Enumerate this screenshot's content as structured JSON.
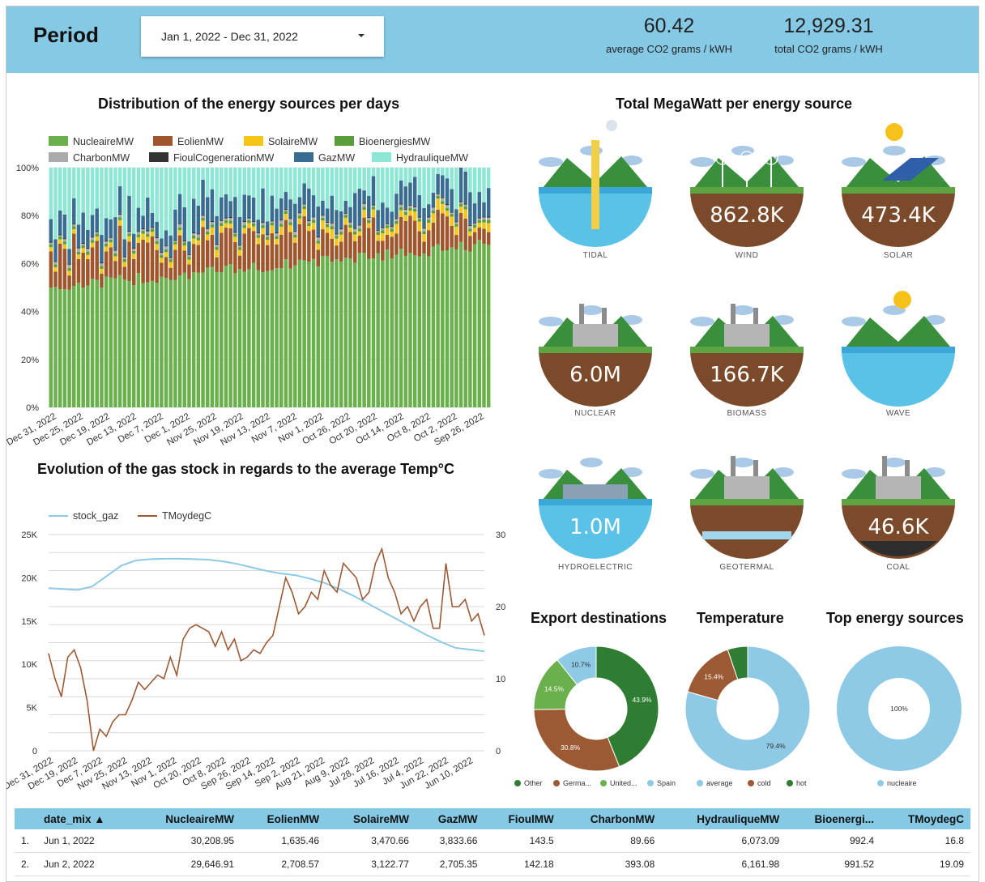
{
  "header": {
    "period_label": "Period",
    "date_range": "Jan 1, 2022 - Dec 31, 2022",
    "kpis": [
      {
        "value": "60.42",
        "label": "average CO2 grams / kWH"
      },
      {
        "value": "12,929.31",
        "label": "total CO2 grams / kWH"
      }
    ]
  },
  "colors": {
    "header_bg": "#85c9e5",
    "nucleaire": "#6ab04c",
    "eolien": "#a0562c",
    "solaire": "#f5c518",
    "bioenergies": "#5a9e3c",
    "charbon": "#aaaaaa",
    "fioul": "#333333",
    "gaz": "#386c90",
    "hydraulique": "#8ee6d4",
    "stock_gaz": "#8ecae6",
    "temp": "#9c5a34"
  },
  "titles": {
    "distribution": "Distribution of the energy sources per days",
    "total_mw": "Total MegaWatt per energy source",
    "gas": "Evolution of the gas stock in regards to the average Temp°C",
    "export": "Export destinations",
    "temperature": "Temperature",
    "top": "Top energy sources"
  },
  "chart_data": [
    {
      "type": "bar",
      "stacked": true,
      "normalized": true,
      "legend": [
        "NucleaireMW",
        "EolienMW",
        "SolaireMW",
        "BioenergiesMW",
        "CharbonMW",
        "FioulCogenerationMW",
        "GazMW",
        "HydrauliqueMW"
      ],
      "y_ticks": [
        "0%",
        "20%",
        "40%",
        "60%",
        "80%",
        "100%"
      ],
      "x_ticks": [
        "Dec 31, 2022",
        "Dec 25, 2022",
        "Dec 19, 2022",
        "Dec 13, 2022",
        "Dec 7, 2022",
        "Dec 1, 2022",
        "Nov 25, 2022",
        "Nov 19, 2022",
        "Nov 13, 2022",
        "Nov 7, 2022",
        "Nov 1, 2022",
        "Oct 26, 2022",
        "Oct 20, 2022",
        "Oct 14, 2022",
        "Oct 8, 2022",
        "Oct 2, 2022",
        "Sep 26, 2022"
      ],
      "series_approx_share": {
        "NucleaireMW": [
          0.52,
          0.68
        ],
        "EolienMW": [
          0.02,
          0.22
        ],
        "SolaireMW": [
          0.01,
          0.05
        ],
        "BioenergiesMW": [
          0.01,
          0.02
        ],
        "CharbonMW": [
          0.0,
          0.01
        ],
        "FioulCogenerationMW": [
          0.0,
          0.01
        ],
        "GazMW": [
          0.04,
          0.15
        ],
        "HydrauliqueMW": [
          0.06,
          0.12
        ]
      }
    },
    {
      "type": "line",
      "legend": [
        "stock_gaz",
        "TMoydegC"
      ],
      "y_left_ticks": [
        "0",
        "5K",
        "10K",
        "15K",
        "20K",
        "25K"
      ],
      "y_left_range": [
        0,
        25000
      ],
      "y_right_ticks": [
        "0",
        "10",
        "20",
        "30"
      ],
      "y_right_range": [
        0,
        30
      ],
      "x_ticks": [
        "Dec 31, 2022",
        "Dec 19, 2022",
        "Dec 7, 2022",
        "Nov 25, 2022",
        "Nov 13, 2022",
        "Nov 1, 2022",
        "Oct 20, 2022",
        "Oct 8, 2022",
        "Sep 26, 2022",
        "Sep 14, 2022",
        "Sep 2, 2022",
        "Aug 21, 2022",
        "Aug 9, 2022",
        "Jul 28, 2022",
        "Jul 16, 2022",
        "Jul 4, 2022",
        "Jun 22, 2022",
        "Jun 10, 2022"
      ],
      "stock_gaz": [
        18800,
        18700,
        18600,
        19000,
        20200,
        21400,
        22000,
        22150,
        22200,
        22200,
        22150,
        22100,
        21900,
        21600,
        21200,
        20800,
        20500,
        20300,
        19900,
        19400,
        18700,
        17900,
        17000,
        16100,
        15200,
        14300,
        13400,
        12600,
        11900,
        11700,
        11500
      ],
      "TMoydegC": [
        13.5,
        10,
        7.5,
        13,
        14,
        11.5,
        7,
        0,
        3,
        2,
        4,
        5,
        5,
        7,
        9.5,
        8.5,
        9.5,
        10.5,
        10,
        13,
        10.5,
        15.5,
        17,
        17.5,
        17,
        16.5,
        14.5,
        16.5,
        14,
        15.5,
        12.5,
        13,
        14,
        13.5,
        15,
        16,
        20,
        24,
        22,
        19,
        20,
        22,
        21,
        25,
        23,
        22,
        26,
        25,
        24,
        21,
        22,
        26,
        28,
        24,
        22,
        19,
        20,
        18,
        20,
        21,
        17,
        17,
        26,
        20,
        20,
        21,
        18,
        19,
        16
      ]
    },
    {
      "type": "pie",
      "donut": true,
      "labels": [
        "Other",
        "Germa...",
        "United...",
        "Spain"
      ],
      "values": [
        43.9,
        30.8,
        14.5,
        10.7
      ],
      "value_labels": [
        "43.9%",
        "30.8%",
        "14.5%",
        "10.7%"
      ]
    },
    {
      "type": "pie",
      "donut": true,
      "labels": [
        "average",
        "cold",
        "hot"
      ],
      "values": [
        79.4,
        15.4,
        5.2
      ],
      "value_labels": [
        "79.4%",
        "15.4%",
        ""
      ]
    },
    {
      "type": "pie",
      "donut": true,
      "labels": [
        "nucleaire"
      ],
      "values": [
        100
      ],
      "value_labels": [
        "100%"
      ]
    }
  ],
  "donut_colors": {
    "export": [
      "#2e7d32",
      "#9c5a34",
      "#6ab04c",
      "#8ecae6"
    ],
    "temperature": [
      "#8ecae6",
      "#9c5a34",
      "#2e7d32"
    ],
    "top": [
      "#8ecae6"
    ]
  },
  "sources": [
    {
      "caption": "TIDAL",
      "value": "",
      "icon": "tidal-icon"
    },
    {
      "caption": "WIND",
      "value": "862.8K",
      "icon": "wind-turbine-icon"
    },
    {
      "caption": "SOLAR",
      "value": "473.4K",
      "icon": "solar-panel-icon"
    },
    {
      "caption": "NUCLEAR",
      "value": "6.0M",
      "icon": "nuclear-plant-icon"
    },
    {
      "caption": "BIOMASS",
      "value": "166.7K",
      "icon": "biomass-plant-icon"
    },
    {
      "caption": "WAVE",
      "value": "",
      "icon": "wave-icon"
    },
    {
      "caption": "HYDROELECTRIC",
      "value": "1.0M",
      "icon": "dam-icon"
    },
    {
      "caption": "GEOTERMAL",
      "value": "",
      "icon": "geothermal-icon"
    },
    {
      "caption": "COAL",
      "value": "46.6K",
      "icon": "coal-plant-icon"
    }
  ],
  "table": {
    "columns": [
      "date_mix ▲",
      "NucleaireMW",
      "EolienMW",
      "SolaireMW",
      "GazMW",
      "FioulMW",
      "CharbonMW",
      "HydrauliqueMW",
      "Bioenergi...",
      "TMoydegC"
    ],
    "rows": [
      [
        "1.",
        "Jun 1, 2022",
        "30,208.95",
        "1,635.46",
        "3,470.66",
        "3,833.66",
        "143.5",
        "89.66",
        "6,073.09",
        "992.4",
        "16.8"
      ],
      [
        "2.",
        "Jun 2, 2022",
        "29,646.91",
        "2,708.57",
        "3,122.77",
        "2,705.35",
        "142.18",
        "393.08",
        "6,161.98",
        "991.52",
        "19.09"
      ]
    ]
  }
}
